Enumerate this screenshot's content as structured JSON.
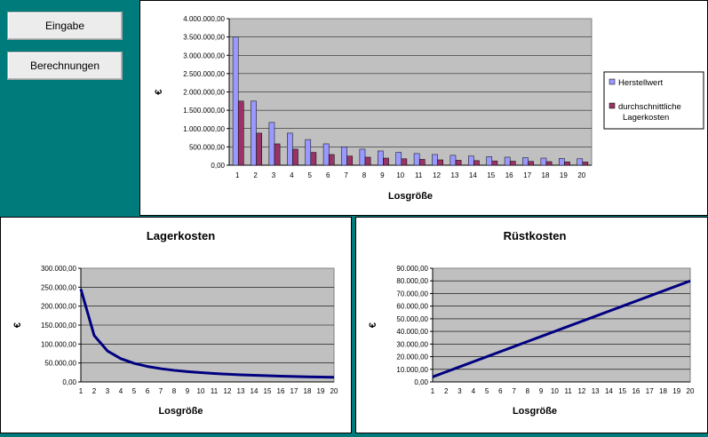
{
  "buttons": {
    "eingabe": "Eingabe",
    "berechnungen": "Berechnungen"
  },
  "chart_data": [
    {
      "type": "bar",
      "title": "",
      "xlabel": "Losgröße",
      "ylabel": "€",
      "ylim": [
        0,
        4000000
      ],
      "yticks": [
        "0,00",
        "500.000,00",
        "1.000.000,00",
        "1.500.000,00",
        "2.000.000,00",
        "2.500.000,00",
        "3.000.000,00",
        "3.500.000,00",
        "4.000.000,00"
      ],
      "categories": [
        "1",
        "2",
        "3",
        "4",
        "5",
        "6",
        "7",
        "8",
        "9",
        "10",
        "11",
        "12",
        "13",
        "14",
        "15",
        "16",
        "17",
        "18",
        "19",
        "20"
      ],
      "legend_position": "right",
      "series": [
        {
          "name": "Herstellwert",
          "color": "#9999ff",
          "values": [
            3500000,
            1750000,
            1167000,
            875000,
            700000,
            583000,
            500000,
            438000,
            389000,
            350000,
            318000,
            292000,
            269000,
            250000,
            233000,
            219000,
            206000,
            194000,
            184000,
            175000
          ]
        },
        {
          "name": "durchschnittliche Lagerkosten",
          "color": "#993366",
          "values": [
            1750000,
            875000,
            583000,
            438000,
            350000,
            292000,
            250000,
            219000,
            194000,
            175000,
            159000,
            146000,
            135000,
            125000,
            117000,
            109000,
            103000,
            97000,
            92000,
            88000
          ]
        }
      ]
    },
    {
      "type": "line",
      "title": "Lagerkosten",
      "xlabel": "Losgröße",
      "ylabel": "€",
      "ylim": [
        0,
        300000
      ],
      "yticks": [
        "0,00",
        "50.000,00",
        "100.000,00",
        "150.000,00",
        "200.000,00",
        "250.000,00",
        "300.000,00"
      ],
      "categories": [
        "1",
        "2",
        "3",
        "4",
        "5",
        "6",
        "7",
        "8",
        "9",
        "10",
        "11",
        "12",
        "13",
        "14",
        "15",
        "16",
        "17",
        "18",
        "19",
        "20"
      ],
      "series": [
        {
          "color": "#000080",
          "values": [
            245000,
            122500,
            81700,
            61300,
            49000,
            40800,
            35000,
            30600,
            27200,
            24500,
            22300,
            20400,
            18800,
            17500,
            16300,
            15300,
            14400,
            13600,
            12900,
            12300
          ]
        }
      ]
    },
    {
      "type": "line",
      "title": "Rüstkosten",
      "xlabel": "Losgröße",
      "ylabel": "€",
      "ylim": [
        0,
        90000
      ],
      "yticks": [
        "0,00",
        "10.000,00",
        "20.000,00",
        "30.000,00",
        "40.000,00",
        "50.000,00",
        "60.000,00",
        "70.000,00",
        "80.000,00",
        "90.000,00"
      ],
      "categories": [
        "1",
        "2",
        "3",
        "4",
        "5",
        "6",
        "7",
        "8",
        "9",
        "10",
        "11",
        "12",
        "13",
        "14",
        "15",
        "16",
        "17",
        "18",
        "19",
        "20"
      ],
      "series": [
        {
          "color": "#000080",
          "values": [
            4000,
            8000,
            12000,
            16000,
            20000,
            24000,
            28000,
            32000,
            36000,
            40000,
            44000,
            48000,
            52000,
            56000,
            60000,
            64000,
            68000,
            72000,
            76000,
            80000
          ]
        }
      ]
    }
  ]
}
